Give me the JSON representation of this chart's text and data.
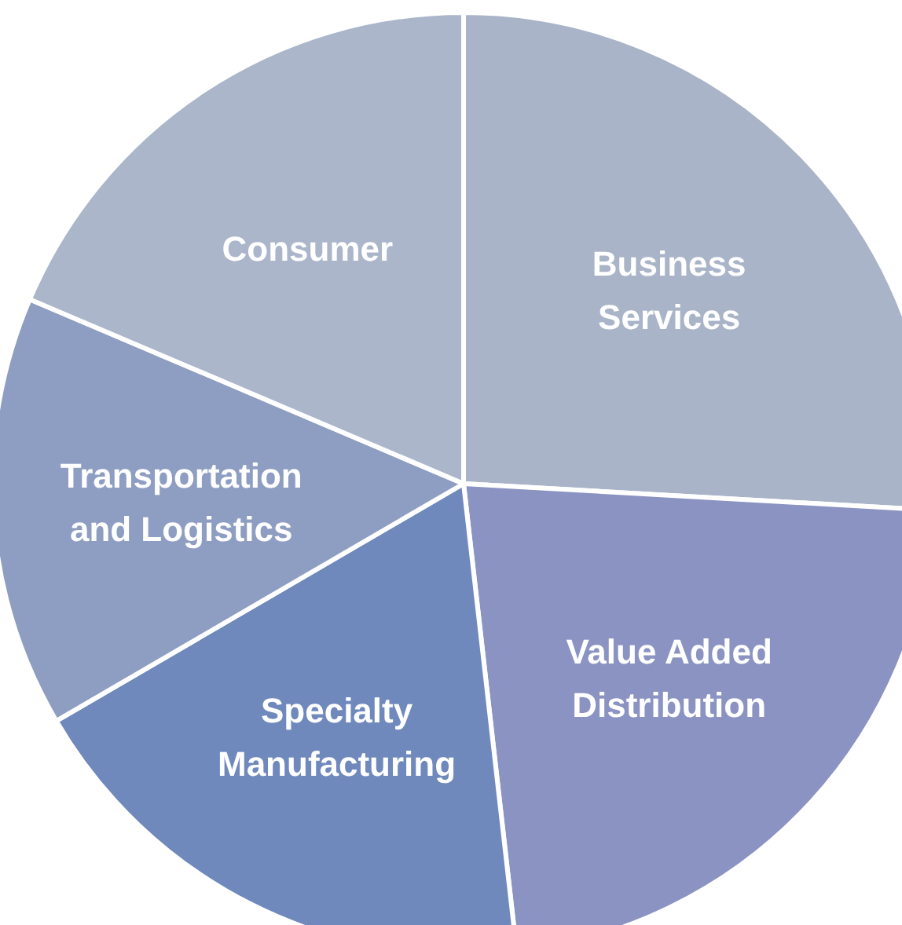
{
  "chart_data": {
    "type": "pie",
    "categories": [
      "Business Services",
      "Value Added Distribution",
      "Specialty Manufacturing",
      "Transportation and Logistics",
      "Consumer"
    ],
    "values": [
      25.9,
      22.3,
      18.4,
      14.8,
      18.6
    ],
    "colors": [
      "#a9b4c8",
      "#8a93c2",
      "#6f89bd",
      "#8e9ec2",
      "#abb6cb"
    ]
  }
}
